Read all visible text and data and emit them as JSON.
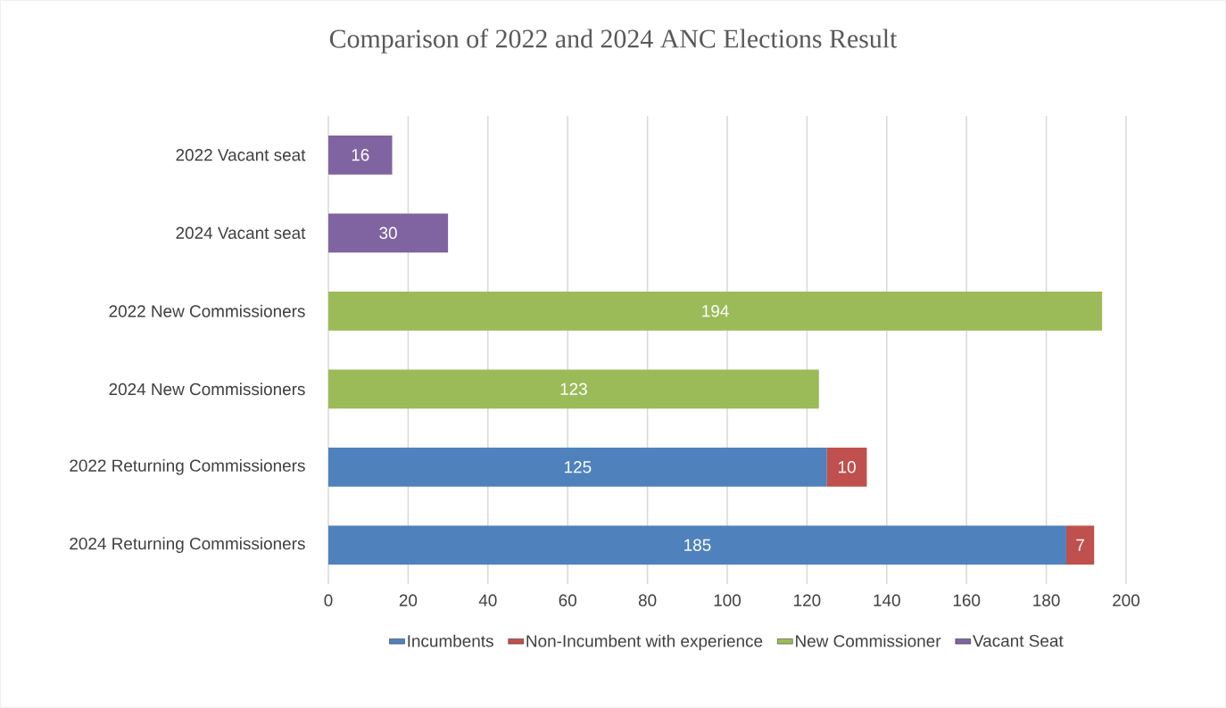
{
  "chart_data": {
    "type": "bar",
    "orientation": "horizontal",
    "stacked": true,
    "title": "Comparison of 2022 and 2024 ANC Elections Result",
    "categories": [
      "2022 Vacant seat",
      "2024 Vacant seat",
      "2022 New Commissioners",
      "2024 New Commissioners",
      "2022 Returning Commissioners",
      "2024 Returning Commissioners"
    ],
    "series": [
      {
        "name": "Incumbents",
        "color": "#4f81bd",
        "values": [
          null,
          null,
          null,
          null,
          125,
          185
        ]
      },
      {
        "name": "Non-Incumbent with experience",
        "color": "#c0504d",
        "values": [
          null,
          null,
          null,
          null,
          10,
          7
        ]
      },
      {
        "name": "New Commissioner",
        "color": "#9bbb59",
        "values": [
          null,
          null,
          194,
          123,
          null,
          null
        ]
      },
      {
        "name": "Vacant Seat",
        "color": "#8064a2",
        "values": [
          16,
          30,
          null,
          null,
          null,
          null
        ]
      }
    ],
    "xlim": [
      0,
      200
    ],
    "xticks": [
      0,
      20,
      40,
      60,
      80,
      100,
      120,
      140,
      160,
      180,
      200
    ],
    "grid": "x",
    "legend": "bottom",
    "data_labels": true
  }
}
